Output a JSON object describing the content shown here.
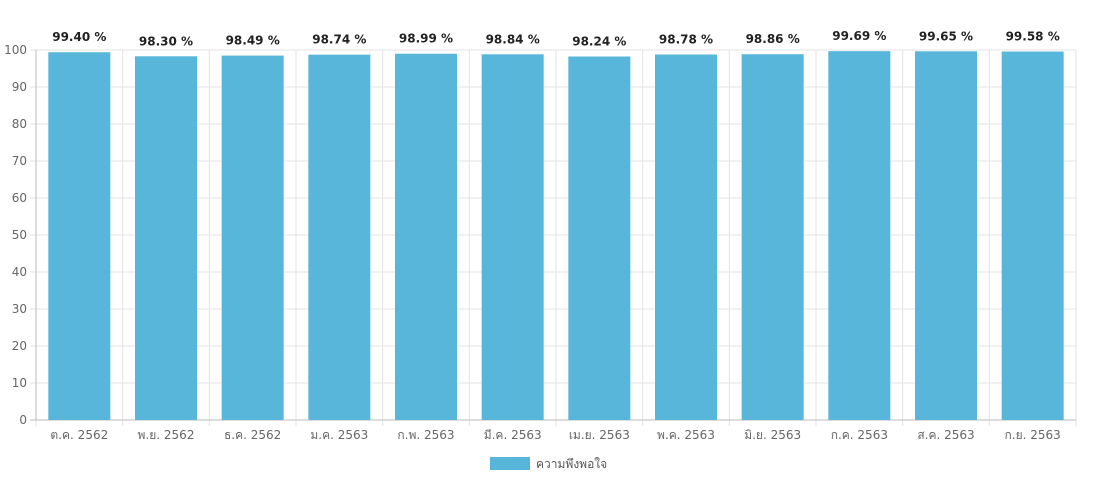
{
  "chart_data": {
    "type": "bar",
    "categories": [
      "ต.ค. 2562",
      "พ.ย. 2562",
      "ธ.ค. 2562",
      "ม.ค. 2563",
      "ก.พ. 2563",
      "มี.ค. 2563",
      "เม.ย. 2563",
      "พ.ค. 2563",
      "มิ.ย. 2563",
      "ก.ค. 2563",
      "ส.ค. 2563",
      "ก.ย. 2563"
    ],
    "series": [
      {
        "name": "ความพึงพอใจ",
        "values": [
          99.4,
          98.3,
          98.49,
          98.74,
          98.99,
          98.84,
          98.24,
          98.78,
          98.86,
          99.69,
          99.65,
          99.58
        ],
        "color": "#57b6d9"
      }
    ],
    "data_labels": [
      "99.40 %",
      "98.30 %",
      "98.49 %",
      "98.74 %",
      "98.99 %",
      "98.84 %",
      "98.24 %",
      "98.78 %",
      "98.86 %",
      "99.69 %",
      "99.65 %",
      "99.58 %"
    ],
    "y_ticks": [
      0,
      10,
      20,
      30,
      40,
      50,
      60,
      70,
      80,
      90,
      100
    ],
    "ylim": [
      0,
      100
    ],
    "grid": true,
    "legend_position": "bottom"
  }
}
